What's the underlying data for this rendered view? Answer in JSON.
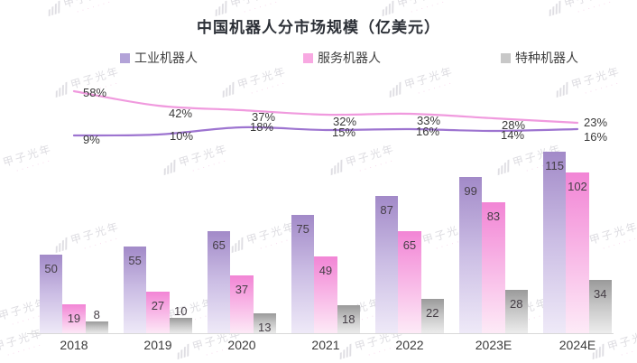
{
  "title": "中国机器人分市场规模（亿美元）",
  "legend": {
    "items": [
      {
        "label": "工业机器人",
        "color": "#b3a3d8"
      },
      {
        "label": "服务机器人",
        "color": "#f8a9e2"
      },
      {
        "label": "特种机器人",
        "color": "#c8c8c8"
      }
    ]
  },
  "watermark": {
    "text": "甲子光年"
  },
  "chart_data": {
    "type": "bar",
    "subtype": "grouped bars with two smoothed growth-rate overlay lines",
    "title": "中国机器人分市场规模（亿美元）",
    "unit": "亿美元",
    "categories": [
      "2018",
      "2019",
      "2020",
      "2021",
      "2022",
      "2023E",
      "2024E"
    ],
    "series": [
      {
        "name": "工业机器人",
        "values": [
          50,
          55,
          65,
          75,
          87,
          99,
          115
        ],
        "gradient": [
          "#a28ac8",
          "#cbbde4",
          "#efeaf8"
        ]
      },
      {
        "name": "服务机器人",
        "values": [
          19,
          27,
          37,
          49,
          65,
          83,
          102
        ],
        "gradient": [
          "#f285d5",
          "#f8b6e6",
          "#fdebf7"
        ]
      },
      {
        "name": "特种机器人",
        "values": [
          8,
          10,
          13,
          18,
          22,
          28,
          34
        ],
        "gradient": [
          "#9a9a9a",
          "#c7c7c7",
          "#eeeeee"
        ]
      }
    ],
    "line_series": [
      {
        "id": "pink_line",
        "values_pct": [
          58,
          42,
          37,
          32,
          33,
          28,
          23
        ],
        "color": "#f09ade"
      },
      {
        "id": "purple_line",
        "values_pct": [
          9,
          10,
          18,
          15,
          16,
          14,
          16
        ],
        "color": "#9d74d0"
      }
    ],
    "legend_position": "top",
    "grid": false,
    "value_labels": true,
    "axis_line_color": "#d8d8d8"
  }
}
